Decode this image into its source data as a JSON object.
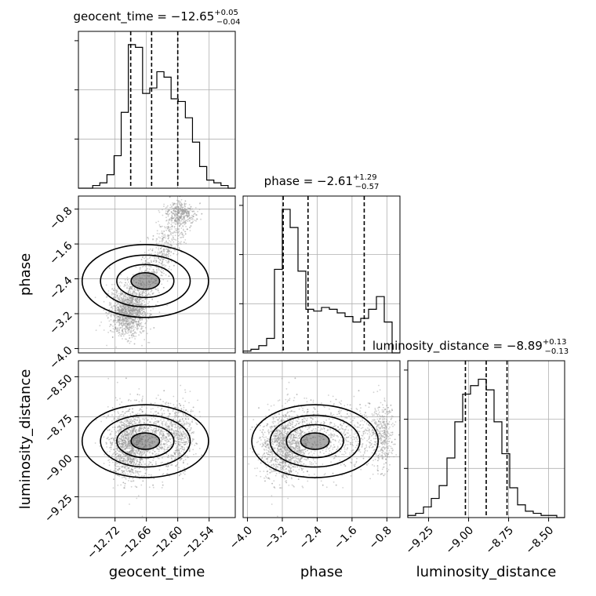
{
  "chart_data": {
    "type": "corner",
    "parameters": [
      "geocent_time",
      "phase",
      "luminosity_distance"
    ],
    "axis_labels": {
      "geocent_time": "geocent_time",
      "phase": "phase",
      "luminosity_distance": "luminosity_distance"
    },
    "titles": [
      {
        "param": "geocent_time",
        "text": "geocent_time = −12.65",
        "plus": "+0.05",
        "minus": "−0.04"
      },
      {
        "param": "phase",
        "text": "phase = −2.61",
        "plus": "+1.29",
        "minus": "−0.57"
      },
      {
        "param": "luminosity_distance",
        "text": "luminosity_distance = −8.89",
        "plus": "+0.13",
        "minus": "−0.13"
      }
    ],
    "ranges": {
      "geocent_time": [
        -12.79,
        -12.49
      ],
      "phase": [
        -4.1,
        -0.5
      ],
      "luminosity_distance": [
        -9.38,
        -8.4
      ]
    },
    "ticks": {
      "geocent_time": {
        "values": [
          -12.72,
          -12.66,
          -12.6,
          -12.54
        ],
        "labels": [
          "−12.72",
          "−12.66",
          "−12.60",
          "−12.54"
        ]
      },
      "phase": {
        "values": [
          -4.0,
          -3.2,
          -2.4,
          -1.6,
          -0.8
        ],
        "labels": [
          "−4.0",
          "−3.2",
          "−2.4",
          "−1.6",
          "−0.8"
        ]
      },
      "luminosity_distance": {
        "values": [
          -9.25,
          -9.0,
          -8.75,
          -8.5
        ],
        "labels": [
          "−9.25",
          "−9.00",
          "−8.75",
          "−8.50"
        ]
      }
    },
    "quantiles": {
      "geocent_time": [
        -12.69,
        -12.65,
        -12.6
      ],
      "phase": [
        -3.18,
        -2.61,
        -1.32
      ],
      "luminosity_distance": [
        -9.02,
        -8.89,
        -8.76
      ]
    },
    "histograms": {
      "geocent_time": [
        0,
        0,
        1,
        2,
        5,
        12,
        28,
        53,
        52,
        35,
        37,
        43,
        41,
        33,
        32,
        26,
        17,
        8,
        3,
        2,
        1,
        0
      ],
      "phase": [
        1,
        2,
        4,
        8,
        46,
        79,
        69,
        45,
        24,
        23,
        25,
        24,
        22,
        20,
        17,
        19,
        24,
        31,
        17,
        0
      ],
      "luminosity_distance": [
        1,
        2,
        5,
        9,
        15,
        28,
        45,
        58,
        62,
        65,
        60,
        45,
        30,
        14,
        6,
        3,
        2,
        1,
        1,
        0
      ]
    },
    "hist_ymax": {
      "geocent_time": 55,
      "phase": 82,
      "luminosity_distance": 70
    },
    "grid": true,
    "layout": "lower-triangle 3x3"
  }
}
